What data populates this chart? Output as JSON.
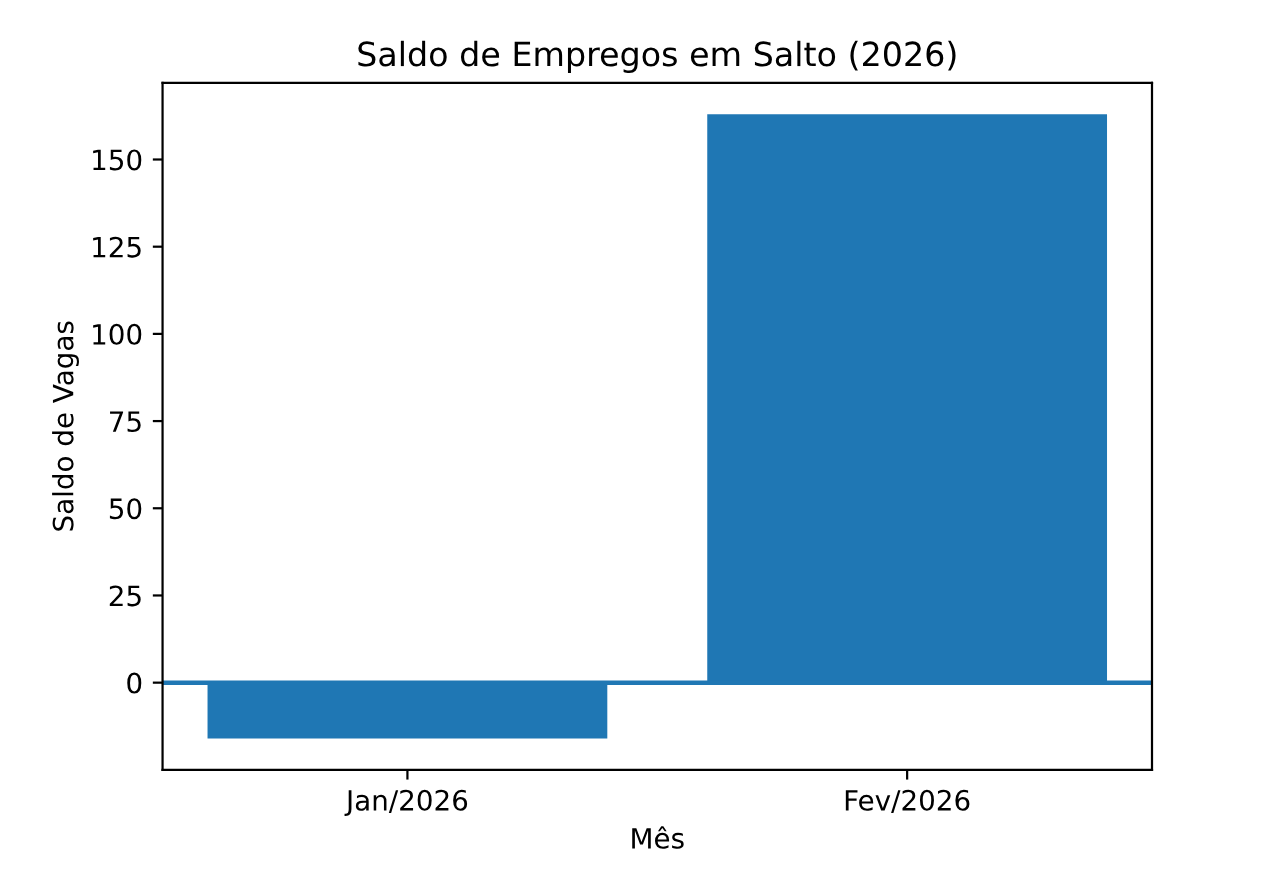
{
  "chart_data": {
    "type": "bar",
    "title": "Saldo de Empregos em Salto (2026)",
    "xlabel": "Mês",
    "ylabel": "Saldo de Vagas",
    "categories": [
      "Jan/2026",
      "Fev/2026"
    ],
    "values": [
      -16,
      163
    ],
    "color": "#1f77b4",
    "ylim": [
      -25,
      172
    ],
    "yticks": [
      0,
      25,
      50,
      75,
      100,
      125,
      150
    ],
    "grid": false,
    "ref_lines": [
      {
        "axis": "y",
        "value": 0,
        "color": "#1f77b4"
      }
    ]
  }
}
